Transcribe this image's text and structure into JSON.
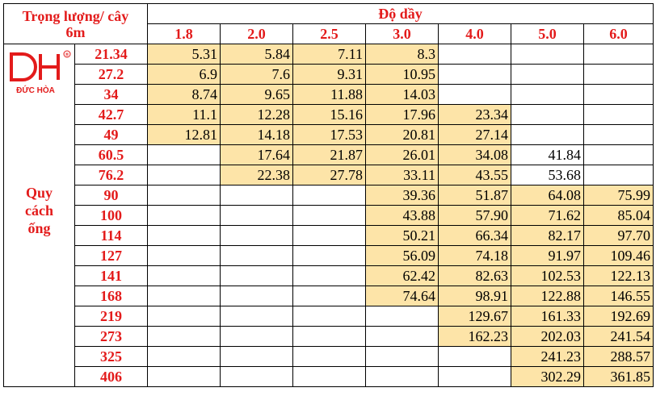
{
  "header": {
    "weight_label_line1": "Trọng lượng/ cây",
    "weight_label_line2": "6m",
    "thickness_label": "Độ dầy"
  },
  "logo": {
    "letters": "DH",
    "registered": "®",
    "brand": "ĐỨC HÒA"
  },
  "side_label": [
    "Quy",
    "cách",
    "ống"
  ],
  "thicknesses": [
    "1.8",
    "2.0",
    "2.5",
    "3.0",
    "4.0",
    "5.0",
    "6.0"
  ],
  "rows": [
    {
      "od": "21.34",
      "values": [
        "5.31",
        "5.84",
        "7.11",
        "8.3",
        "",
        "",
        ""
      ]
    },
    {
      "od": "27.2",
      "values": [
        "6.9",
        "7.6",
        "9.31",
        "10.95",
        "",
        "",
        ""
      ]
    },
    {
      "od": "34",
      "values": [
        "8.74",
        "9.65",
        "11.88",
        "14.03",
        "",
        "",
        ""
      ]
    },
    {
      "od": "42.7",
      "values": [
        "11.1",
        "12.28",
        "15.16",
        "17.96",
        "23.34",
        "",
        ""
      ]
    },
    {
      "od": "49",
      "values": [
        "12.81",
        "14.18",
        "17.53",
        "20.81",
        "27.14",
        "",
        ""
      ]
    },
    {
      "od": "60.5",
      "values": [
        "",
        "17.64",
        "21.87",
        "26.01",
        "34.08",
        "41.84",
        ""
      ]
    },
    {
      "od": "76.2",
      "values": [
        "",
        "22.38",
        "27.78",
        "33.11",
        "43.55",
        "53.68",
        ""
      ]
    },
    {
      "od": "90",
      "values": [
        "",
        "",
        "",
        "39.36",
        "51.87",
        "64.08",
        "75.99"
      ]
    },
    {
      "od": "100",
      "values": [
        "",
        "",
        "",
        "43.88",
        "57.90",
        "71.62",
        "85.04"
      ]
    },
    {
      "od": "114",
      "values": [
        "",
        "",
        "",
        "50.21",
        "66.34",
        "82.17",
        "97.70"
      ]
    },
    {
      "od": "127",
      "values": [
        "",
        "",
        "",
        "56.09",
        "74.18",
        "91.97",
        "109.46"
      ]
    },
    {
      "od": "141",
      "values": [
        "",
        "",
        "",
        "62.42",
        "82.63",
        "102.53",
        "122.13"
      ]
    },
    {
      "od": "168",
      "values": [
        "",
        "",
        "",
        "74.64",
        "98.91",
        "122.88",
        "146.55"
      ]
    },
    {
      "od": "219",
      "values": [
        "",
        "",
        "",
        "",
        "129.67",
        "161.33",
        "192.69"
      ]
    },
    {
      "od": "273",
      "values": [
        "",
        "",
        "",
        "",
        "162.23",
        "202.03",
        "241.54"
      ]
    },
    {
      "od": "325",
      "values": [
        "",
        "",
        "",
        "",
        "",
        "241.23",
        "288.57"
      ]
    },
    {
      "od": "406",
      "values": [
        "",
        "",
        "",
        "",
        "",
        "302.29",
        "361.85"
      ]
    }
  ],
  "highlight_rows": [
    [
      0,
      1,
      2,
      3
    ],
    [
      0,
      1,
      2,
      3
    ],
    [
      0,
      1,
      2,
      3
    ],
    [
      0,
      1,
      2,
      3,
      4
    ],
    [
      0,
      1,
      2,
      3,
      4
    ],
    [
      1,
      2,
      3,
      4
    ],
    [
      1,
      2,
      3,
      4
    ],
    [
      3,
      4,
      5,
      6
    ],
    [
      3,
      4,
      5,
      6
    ],
    [
      3,
      4,
      5,
      6
    ],
    [
      3,
      4,
      5,
      6
    ],
    [
      3,
      4,
      5,
      6
    ],
    [
      3,
      4,
      5,
      6
    ],
    [
      4,
      5,
      6
    ],
    [
      4,
      5,
      6
    ],
    [
      5,
      6
    ],
    [
      5,
      6
    ]
  ],
  "colors": {
    "accent": "#e31b1b",
    "highlight": "#fde4a8"
  }
}
